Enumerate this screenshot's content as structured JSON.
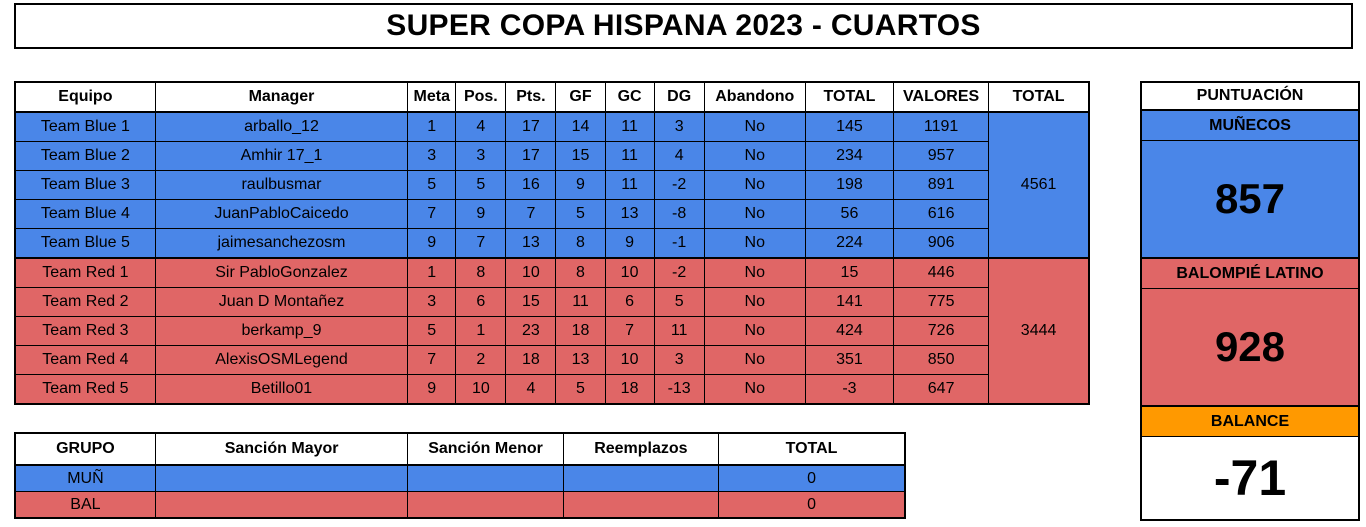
{
  "title": "SUPER COPA HISPANA 2023 - CUARTOS",
  "main_table": {
    "headers": [
      "Equipo",
      "Manager",
      "Meta",
      "Pos.",
      "Pts.",
      "GF",
      "GC",
      "DG",
      "Abandono",
      "TOTAL",
      "VALORES",
      "TOTAL"
    ],
    "blue_rows": [
      [
        "Team Blue 1",
        "arballo_12",
        "1",
        "4",
        "17",
        "14",
        "11",
        "3",
        "No",
        "145",
        "1191"
      ],
      [
        "Team Blue 2",
        "Amhir 17_1",
        "3",
        "3",
        "17",
        "15",
        "11",
        "4",
        "No",
        "234",
        "957"
      ],
      [
        "Team Blue 3",
        "raulbusmar",
        "5",
        "5",
        "16",
        "9",
        "11",
        "-2",
        "No",
        "198",
        "891"
      ],
      [
        "Team Blue 4",
        "JuanPabloCaicedo",
        "7",
        "9",
        "7",
        "5",
        "13",
        "-8",
        "No",
        "56",
        "616"
      ],
      [
        "Team Blue 5",
        "jaimesanchezosm",
        "9",
        "7",
        "13",
        "8",
        "9",
        "-1",
        "No",
        "224",
        "906"
      ]
    ],
    "blue_total": "4561",
    "red_rows": [
      [
        "Team Red 1",
        "Sir PabloGonzalez",
        "1",
        "8",
        "10",
        "8",
        "10",
        "-2",
        "No",
        "15",
        "446"
      ],
      [
        "Team Red 2",
        "Juan D Montañez",
        "3",
        "6",
        "15",
        "11",
        "6",
        "5",
        "No",
        "141",
        "775"
      ],
      [
        "Team Red 3",
        "berkamp_9",
        "5",
        "1",
        "23",
        "18",
        "7",
        "11",
        "No",
        "424",
        "726"
      ],
      [
        "Team Red 4",
        "AlexisOSMLegend",
        "7",
        "2",
        "18",
        "13",
        "10",
        "3",
        "No",
        "351",
        "850"
      ],
      [
        "Team Red 5",
        "Betillo01",
        "9",
        "10",
        "4",
        "5",
        "18",
        "-13",
        "No",
        "-3",
        "647"
      ]
    ],
    "red_total": "3444"
  },
  "sanction_table": {
    "headers": [
      "GRUPO",
      "Sanción Mayor",
      "Sanción Menor",
      "Reemplazos",
      "TOTAL"
    ],
    "rows": [
      {
        "group": "MUÑ",
        "major": "",
        "minor": "",
        "replacements": "",
        "total": "0",
        "color": "blue"
      },
      {
        "group": "BAL",
        "major": "",
        "minor": "",
        "replacements": "",
        "total": "0",
        "color": "red"
      }
    ]
  },
  "score_panel": {
    "header": "PUNTUACIÓN",
    "blue_team": {
      "label": "MUÑECOS",
      "score": "857"
    },
    "red_team": {
      "label": "BALOMPIÉ LATINO",
      "score": "928"
    },
    "balance_label": "BALANCE",
    "balance_value": "-71"
  },
  "colors": {
    "blue": "#4a86e8",
    "red": "#e06666",
    "orange": "#ff9900"
  }
}
